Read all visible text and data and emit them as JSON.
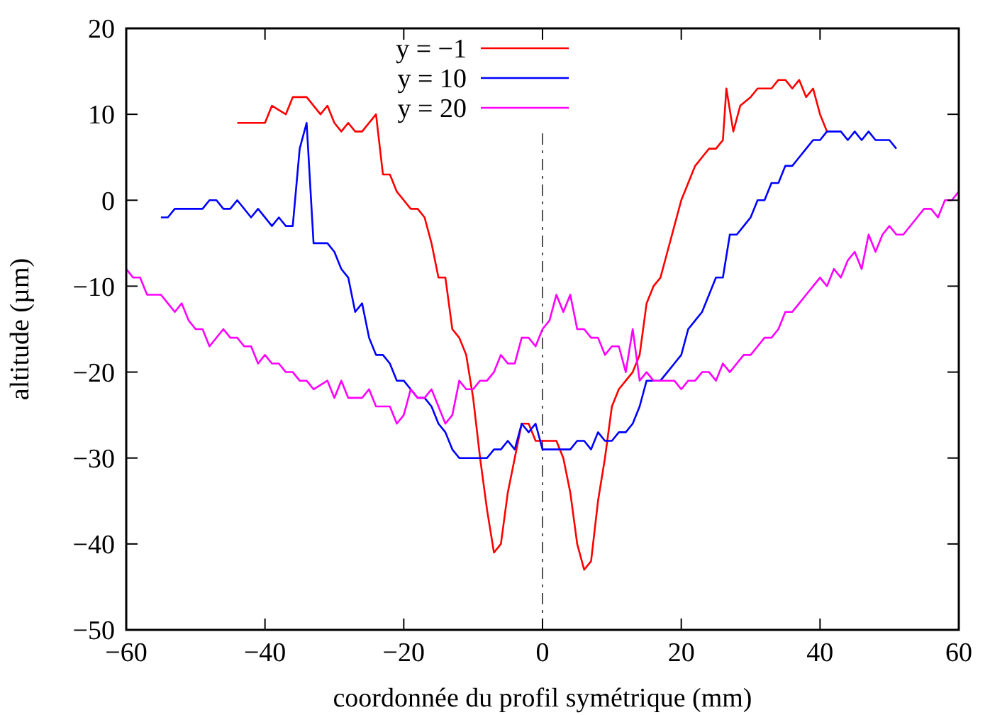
{
  "chart_data": {
    "type": "line",
    "xlabel": "coordonnée du profil symétrique (mm)",
    "ylabel": "altitude (µm)",
    "xlim": [
      -60,
      60
    ],
    "xticks": [
      -60,
      -40,
      -20,
      0,
      20,
      40,
      60
    ],
    "ylim": [
      -50,
      20
    ],
    "yticks": [
      -50,
      -40,
      -30,
      -20,
      -10,
      0,
      10,
      20
    ],
    "grid": false,
    "legend": "top",
    "line_style": "solid",
    "marker": "none",
    "ref_lines": [
      {
        "axis": "x",
        "value": 0,
        "color": "#555555",
        "line_style": "dashdot"
      }
    ],
    "series": [
      {
        "name": "y = −1",
        "color": "#ff0000",
        "x": [
          -44,
          -40,
          -39,
          -37,
          -36,
          -34,
          -32,
          -31,
          -30,
          -29,
          -28,
          -27,
          -26,
          -24,
          -23,
          -22,
          -21,
          -20,
          -19,
          -18,
          -17,
          -16,
          -15,
          -14,
          -13,
          -12,
          -11,
          -10,
          -9,
          -8,
          -7,
          -6,
          -5,
          -4,
          -3,
          -2,
          -1,
          0,
          1,
          2,
          3,
          4,
          5,
          6,
          7,
          8,
          9,
          10,
          11,
          12,
          13,
          14,
          15,
          16,
          17,
          18,
          19,
          20,
          21,
          22,
          23,
          24,
          25,
          26,
          26.5,
          27.5,
          28.5,
          30,
          31,
          33,
          34,
          35,
          36,
          37,
          38,
          39,
          40,
          41
        ],
        "values": [
          9,
          9,
          11,
          10,
          12,
          12,
          10,
          11,
          9,
          8,
          9,
          8,
          8,
          10,
          3,
          3,
          1,
          0,
          -1,
          -1,
          -2,
          -5,
          -9,
          -9,
          -15,
          -16,
          -18,
          -23,
          -30,
          -36,
          -41,
          -40,
          -34,
          -30,
          -26,
          -26,
          -28,
          -28,
          -28,
          -28,
          -30,
          -34,
          -40,
          -43,
          -42,
          -35,
          -30,
          -24,
          -22,
          -21,
          -20,
          -18,
          -12,
          -10,
          -9,
          -6,
          -3,
          0,
          2,
          4,
          5,
          6,
          6,
          7,
          13,
          8,
          11,
          12,
          13,
          13,
          14,
          14,
          13,
          14,
          12,
          13,
          10,
          8
        ]
      },
      {
        "name": "y = 10",
        "color": "#0000ff",
        "x": [
          -55,
          -54,
          -53,
          -49,
          -48,
          -47,
          -46,
          -45,
          -44,
          -42,
          -41,
          -39,
          -38,
          -37,
          -36,
          -35,
          -34,
          -33,
          -31,
          -30,
          -29,
          -28,
          -27,
          -26,
          -25,
          -24,
          -23,
          -22,
          -21,
          -20,
          -19,
          -18,
          -17,
          -16,
          -15,
          -14,
          -13,
          -12,
          -8,
          -7,
          -6,
          -5,
          -4,
          -3,
          -2,
          -1,
          0,
          1,
          2,
          3,
          4,
          5,
          6,
          7,
          8,
          9,
          10,
          11,
          12,
          13,
          14,
          15,
          17,
          18,
          19,
          20,
          21,
          22,
          23,
          24,
          25,
          26,
          27,
          28,
          29,
          30,
          31,
          32,
          33,
          34,
          35,
          36,
          37,
          38,
          39,
          40,
          41,
          43,
          44,
          45,
          46,
          47,
          48,
          50,
          51
        ],
        "values": [
          -2,
          -2,
          -1,
          -1,
          0,
          0,
          -1,
          -1,
          0,
          -2,
          -1,
          -3,
          -2,
          -3,
          -3,
          6,
          9,
          -5,
          -5,
          -6,
          -8,
          -9,
          -13,
          -12,
          -16,
          -18,
          -18,
          -19,
          -21,
          -21,
          -22,
          -23,
          -23,
          -24,
          -26,
          -27,
          -29,
          -30,
          -30,
          -29,
          -29,
          -28,
          -29,
          -26,
          -27,
          -26,
          -29,
          -29,
          -29,
          -29,
          -29,
          -28,
          -28,
          -29,
          -27,
          -28,
          -28,
          -27,
          -27,
          -26,
          -24,
          -21,
          -21,
          -20,
          -19,
          -18,
          -15,
          -14,
          -13,
          -11,
          -9,
          -9,
          -4,
          -4,
          -3,
          -2,
          0,
          0,
          2,
          2,
          4,
          4,
          5,
          6,
          7,
          7,
          8,
          8,
          7,
          8,
          7,
          8,
          7,
          7,
          6
        ]
      },
      {
        "name": "y = 20",
        "color": "#ff00ff",
        "x": [
          -60,
          -59,
          -58,
          -57,
          -55,
          -54,
          -53,
          -52,
          -51,
          -50,
          -49,
          -48,
          -46,
          -45,
          -44,
          -43,
          -42,
          -41,
          -40,
          -39,
          -38,
          -37,
          -36,
          -35,
          -34,
          -33,
          -31,
          -30,
          -29,
          -28,
          -27,
          -26,
          -25,
          -24,
          -22,
          -21,
          -20,
          -19,
          -18,
          -17,
          -16,
          -15,
          -14,
          -13,
          -12,
          -11,
          -10,
          -9,
          -8,
          -7,
          -6,
          -5,
          -4,
          -3,
          -2,
          -1,
          0,
          1,
          2,
          3,
          4,
          5,
          6,
          7,
          8,
          9,
          10,
          11,
          12,
          13,
          14,
          15,
          16,
          19,
          20,
          21,
          22,
          23,
          24,
          25,
          26,
          27,
          28,
          29,
          30,
          31,
          32,
          33,
          34,
          35,
          36,
          37,
          38,
          39,
          40,
          41,
          42,
          43,
          44,
          45,
          46,
          47,
          48,
          49,
          50,
          51,
          52,
          54,
          55,
          56,
          57,
          58,
          59,
          60
        ],
        "values": [
          -8,
          -9,
          -9,
          -11,
          -11,
          -12,
          -13,
          -12,
          -14,
          -15,
          -15,
          -17,
          -15,
          -16,
          -16,
          -17,
          -17,
          -19,
          -18,
          -19,
          -19,
          -20,
          -20,
          -21,
          -21,
          -22,
          -21,
          -23,
          -21,
          -23,
          -23,
          -23,
          -22,
          -24,
          -24,
          -26,
          -25,
          -22,
          -23,
          -23,
          -22,
          -24,
          -26,
          -25,
          -21,
          -22,
          -22,
          -21,
          -21,
          -20,
          -18,
          -19,
          -19,
          -16,
          -16,
          -17,
          -15,
          -14,
          -11,
          -13,
          -11,
          -15,
          -15,
          -16,
          -16,
          -18,
          -17,
          -17,
          -20,
          -15,
          -21,
          -20,
          -21,
          -21,
          -22,
          -21,
          -21,
          -20,
          -20,
          -21,
          -19,
          -20,
          -19,
          -18,
          -18,
          -17,
          -16,
          -16,
          -15,
          -13,
          -13,
          -12,
          -11,
          -10,
          -9,
          -10,
          -8,
          -9,
          -7,
          -6,
          -8,
          -4,
          -6,
          -4,
          -3,
          -4,
          -4,
          -2,
          -1,
          -1,
          -2,
          0,
          0,
          1
        ]
      }
    ]
  }
}
